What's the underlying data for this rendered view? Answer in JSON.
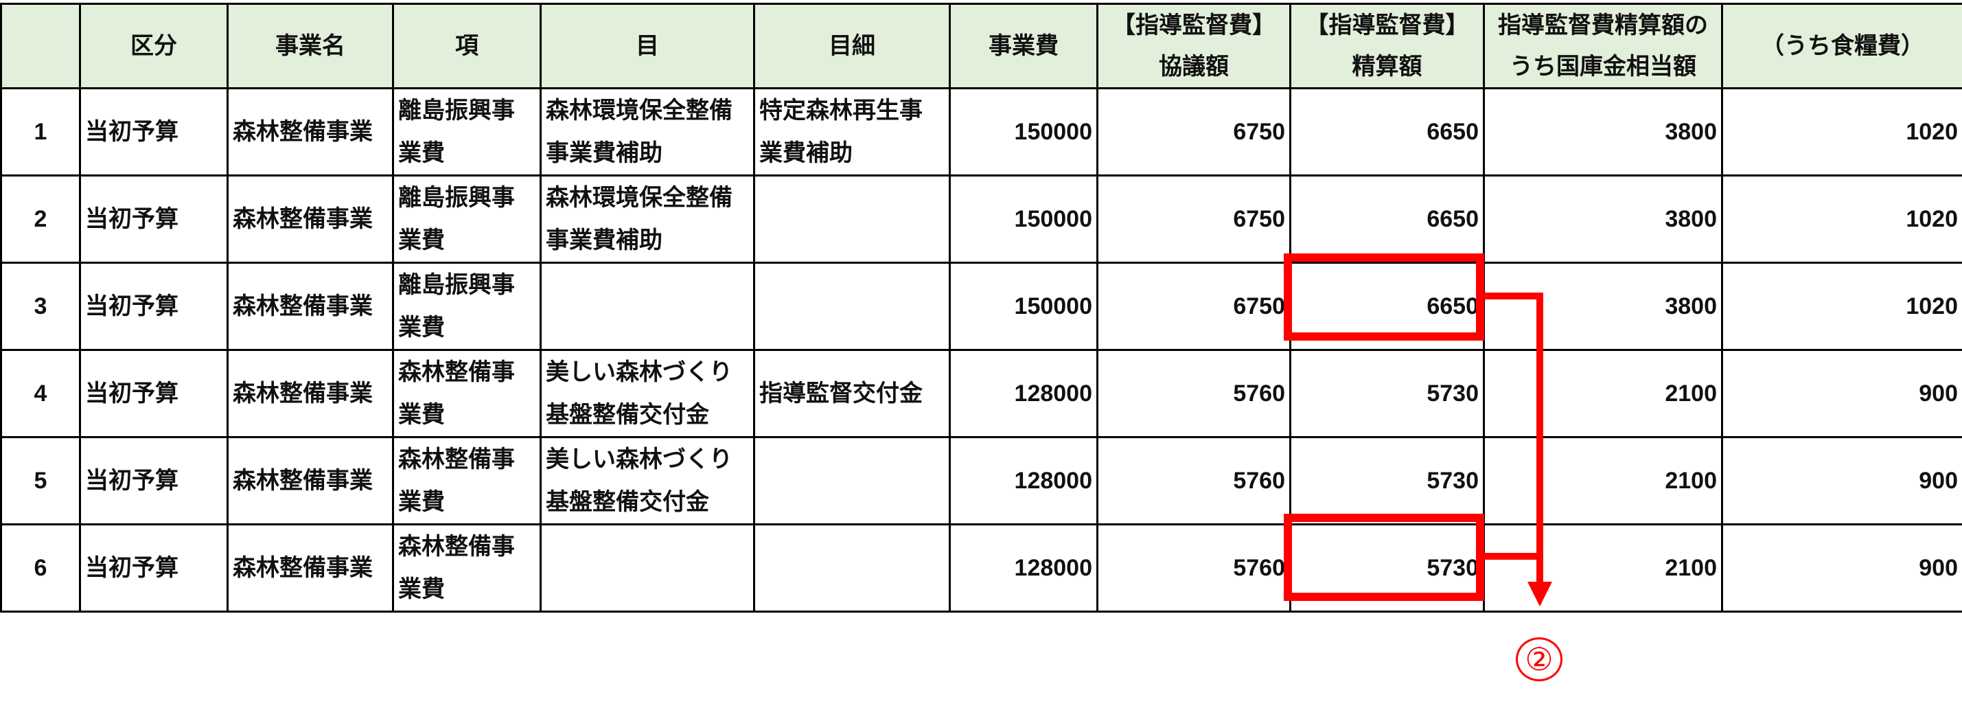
{
  "headers": [
    "",
    "区分",
    "事業名",
    "項",
    "目",
    "目細",
    "事業費",
    "【指導監督費】\n協議額",
    "【指導監督費】\n精算額",
    "指導監督費精算額の\nうち国庫金相当額",
    "（うち食糧費）"
  ],
  "rows": [
    [
      "1",
      "当初予算",
      "森林整備事業",
      "離島振興事業費",
      "森林環境保全整備事業費補助",
      "特定森林再生事業費補助",
      "150000",
      "6750",
      "6650",
      "3800",
      "1020"
    ],
    [
      "2",
      "当初予算",
      "森林整備事業",
      "離島振興事業費",
      "森林環境保全整備事業費補助",
      "",
      "150000",
      "6750",
      "6650",
      "3800",
      "1020"
    ],
    [
      "3",
      "当初予算",
      "森林整備事業",
      "離島振興事業費",
      "",
      "",
      "150000",
      "6750",
      "6650",
      "3800",
      "1020"
    ],
    [
      "4",
      "当初予算",
      "森林整備事業",
      "森林整備事業費",
      "美しい森林づくり基盤整備交付金",
      "指導監督交付金",
      "128000",
      "5760",
      "5730",
      "2100",
      "900"
    ],
    [
      "5",
      "当初予算",
      "森林整備事業",
      "森林整備事業費",
      "美しい森林づくり基盤整備交付金",
      "",
      "128000",
      "5760",
      "5730",
      "2100",
      "900"
    ],
    [
      "6",
      "当初予算",
      "森林整備事業",
      "森林整備事業費",
      "",
      "",
      "128000",
      "5760",
      "5730",
      "2100",
      "900"
    ]
  ],
  "annotation": {
    "label": "②",
    "color": "#ff0000",
    "highlighted_rows": [
      3,
      6
    ],
    "highlighted_column": "【指導監督費】精算額"
  },
  "colors": {
    "header_bg": "#e2efda"
  }
}
